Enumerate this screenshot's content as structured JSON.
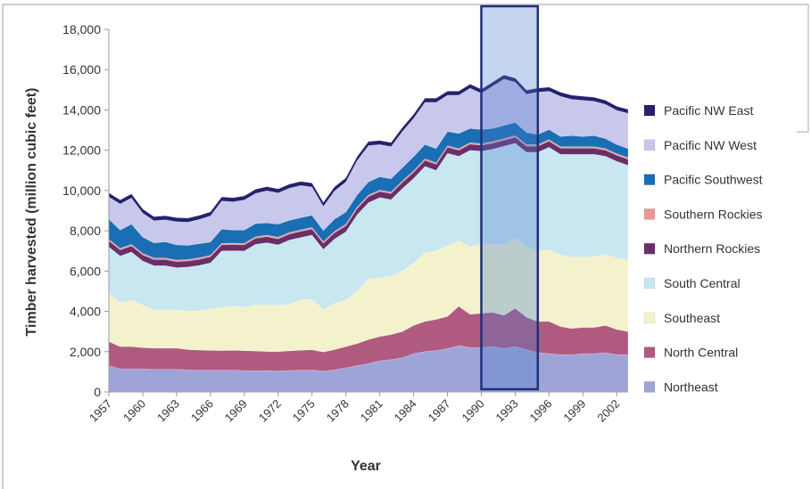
{
  "chart_data": {
    "type": "area",
    "stacked": true,
    "title": "",
    "xlabel": "Year",
    "ylabel": "Timber harvested (million cubic feet)",
    "xlim": [
      1957,
      2003
    ],
    "ylim": [
      0,
      18000
    ],
    "grid": false,
    "legend_position": "right",
    "x": [
      1957,
      1958,
      1959,
      1960,
      1961,
      1962,
      1963,
      1964,
      1965,
      1966,
      1967,
      1968,
      1969,
      1970,
      1971,
      1972,
      1973,
      1974,
      1975,
      1976,
      1977,
      1978,
      1979,
      1980,
      1981,
      1982,
      1983,
      1984,
      1985,
      1986,
      1987,
      1988,
      1989,
      1990,
      1991,
      1992,
      1993,
      1994,
      1995,
      1996,
      1997,
      1998,
      1999,
      2000,
      2001,
      2002,
      2003
    ],
    "x_tick_labels": [
      "1957",
      "1960",
      "1963",
      "1966",
      "1969",
      "1972",
      "1975",
      "1978",
      "1981",
      "1984",
      "1987",
      "1990",
      "1993",
      "1996",
      "1999",
      "2002"
    ],
    "y_tick_labels": [
      "0",
      "2,000",
      "4,000",
      "6,000",
      "8,000",
      "10,000",
      "12,000",
      "14,000",
      "16,000",
      "18,000"
    ],
    "series": [
      {
        "name": "Northeast",
        "color": "#9fa4d8",
        "values": [
          1300,
          1150,
          1150,
          1150,
          1120,
          1120,
          1120,
          1100,
          1080,
          1080,
          1080,
          1080,
          1060,
          1050,
          1060,
          1040,
          1060,
          1080,
          1090,
          1030,
          1100,
          1200,
          1300,
          1400,
          1550,
          1600,
          1700,
          1900,
          2000,
          2050,
          2150,
          2300,
          2200,
          2200,
          2250,
          2150,
          2250,
          2100,
          1950,
          1900,
          1850,
          1850,
          1900,
          1900,
          1950,
          1850,
          1850
        ]
      },
      {
        "name": "North Central",
        "color": "#b05a80",
        "values": [
          1200,
          1100,
          1100,
          1050,
          1050,
          1050,
          1050,
          1000,
          1000,
          980,
          970,
          980,
          990,
          980,
          950,
          960,
          980,
          990,
          1000,
          950,
          1000,
          1050,
          1100,
          1200,
          1200,
          1250,
          1300,
          1400,
          1500,
          1550,
          1600,
          1950,
          1650,
          1700,
          1700,
          1650,
          1900,
          1600,
          1550,
          1600,
          1400,
          1300,
          1300,
          1300,
          1350,
          1250,
          1150
        ]
      },
      {
        "name": "Southeast",
        "color": "#f4f2cc",
        "values": [
          2400,
          2200,
          2300,
          2100,
          1900,
          1900,
          1900,
          1900,
          1950,
          2050,
          2150,
          2200,
          2150,
          2300,
          2300,
          2300,
          2300,
          2500,
          2500,
          2100,
          2300,
          2300,
          2600,
          3000,
          2900,
          2900,
          3000,
          3100,
          3400,
          3400,
          3500,
          3250,
          3350,
          3450,
          3400,
          3500,
          3500,
          3500,
          3500,
          3550,
          3550,
          3550,
          3500,
          3500,
          3500,
          3550,
          3550
        ]
      },
      {
        "name": "South Central",
        "color": "#c9e7f0",
        "values": [
          2300,
          2300,
          2400,
          2200,
          2200,
          2200,
          2100,
          2200,
          2250,
          2300,
          2800,
          2750,
          2800,
          3000,
          3100,
          3000,
          3200,
          3100,
          3200,
          3000,
          3200,
          3400,
          3800,
          3800,
          4000,
          3800,
          4100,
          4200,
          4300,
          4000,
          4600,
          4200,
          4800,
          4600,
          4700,
          4900,
          4700,
          4700,
          4900,
          5100,
          5000,
          5100,
          5100,
          5100,
          4900,
          4800,
          4700
        ]
      },
      {
        "name": "Northern Rockies",
        "color": "#6a2e6a",
        "values": [
          300,
          300,
          300,
          300,
          300,
          300,
          300,
          300,
          300,
          300,
          300,
          300,
          300,
          300,
          300,
          300,
          300,
          300,
          300,
          300,
          300,
          300,
          300,
          300,
          300,
          300,
          300,
          300,
          300,
          300,
          300,
          300,
          300,
          300,
          300,
          300,
          300,
          300,
          300,
          300,
          300,
          300,
          300,
          300,
          300,
          300,
          300
        ]
      },
      {
        "name": "Southern Rockies",
        "color": "#e89898",
        "values": [
          80,
          80,
          80,
          80,
          80,
          80,
          80,
          80,
          80,
          80,
          80,
          80,
          80,
          80,
          80,
          80,
          80,
          80,
          80,
          80,
          80,
          80,
          80,
          80,
          80,
          80,
          80,
          80,
          80,
          80,
          80,
          80,
          80,
          80,
          80,
          80,
          80,
          80,
          80,
          80,
          80,
          80,
          80,
          80,
          80,
          80,
          80
        ]
      },
      {
        "name": "Pacific Southwest",
        "color": "#1a6eb3",
        "values": [
          1000,
          900,
          1000,
          800,
          750,
          800,
          750,
          700,
          700,
          650,
          700,
          650,
          650,
          650,
          600,
          650,
          600,
          600,
          600,
          550,
          600,
          600,
          600,
          650,
          650,
          650,
          650,
          700,
          700,
          700,
          700,
          750,
          700,
          700,
          650,
          650,
          650,
          600,
          500,
          500,
          500,
          550,
          500,
          550,
          500,
          450,
          450
        ]
      },
      {
        "name": "Pacific NW West",
        "color": "#c7c8ec",
        "values": [
          1100,
          1300,
          1300,
          1200,
          1100,
          1100,
          1150,
          1150,
          1200,
          1300,
          1400,
          1400,
          1500,
          1500,
          1600,
          1550,
          1600,
          1600,
          1400,
          1200,
          1400,
          1500,
          1700,
          1800,
          1600,
          1600,
          1800,
          1900,
          2100,
          2300,
          1800,
          1900,
          2000,
          1800,
          2100,
          2300,
          2000,
          1900,
          2100,
          1900,
          2000,
          1800,
          1800,
          1700,
          1700,
          1700,
          1750
        ]
      },
      {
        "name": "Pacific NW East",
        "color": "#26216e",
        "values": [
          200,
          200,
          200,
          200,
          200,
          200,
          200,
          200,
          200,
          200,
          200,
          200,
          200,
          200,
          200,
          200,
          200,
          200,
          200,
          200,
          200,
          200,
          200,
          200,
          200,
          200,
          200,
          200,
          200,
          200,
          200,
          200,
          200,
          200,
          200,
          200,
          200,
          200,
          200,
          200,
          200,
          200,
          200,
          200,
          200,
          200,
          200
        ]
      }
    ],
    "highlight": {
      "x_start": 1990,
      "x_end": 1995
    }
  }
}
